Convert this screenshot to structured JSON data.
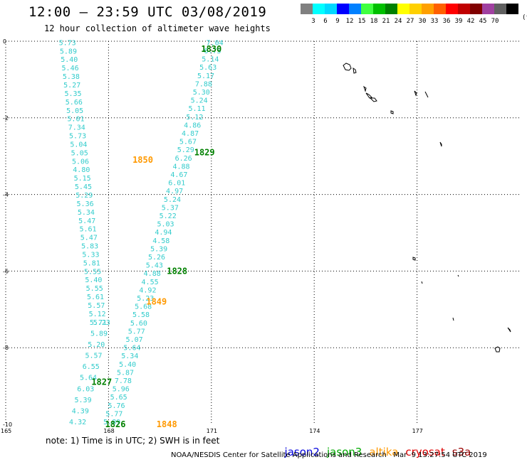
{
  "header": {
    "title": "12:00 — 23:59 UTC 03/08/2019",
    "subtitle": "12 hour collection of altimeter wave heights"
  },
  "legend": {
    "colors": [
      "#808080",
      "#00ffff",
      "#00d8ff",
      "#0000ff",
      "#0080ff",
      "#40ff40",
      "#00c000",
      "#008000",
      "#ffff00",
      "#ffd000",
      "#ffa000",
      "#ff6000",
      "#ff0000",
      "#c00000",
      "#800000",
      "#a040a0",
      "#606060",
      "#000000"
    ],
    "labels": [
      "3",
      "6",
      "9",
      "12",
      "15",
      "18",
      "21",
      "24",
      "27",
      "30",
      "33",
      "36",
      "39",
      "42",
      "45",
      "70"
    ],
    "unit": "(ft)"
  },
  "map": {
    "lon_range": [
      165,
      180
    ],
    "lat_range": [
      0,
      -10
    ],
    "y_ticks": [
      "0",
      "-2",
      "-4",
      "-6",
      "-8",
      "-10"
    ],
    "x_ticks": [
      "165",
      "168",
      "171",
      "174",
      "177"
    ],
    "grid": true,
    "point_color": "#33cccc",
    "passes": [
      {
        "label": "1830",
        "color": "#008000",
        "lon": 170.7,
        "lat": -0.2
      },
      {
        "label": "1829",
        "color": "#008000",
        "lon": 170.5,
        "lat": -2.9
      },
      {
        "label": "1828",
        "color": "#008000",
        "lon": 169.7,
        "lat": -6.0
      },
      {
        "label": "1827",
        "color": "#008000",
        "lon": 167.5,
        "lat": -8.9
      },
      {
        "label": "1826",
        "color": "#008000",
        "lon": 167.9,
        "lat": -10.0
      },
      {
        "label": "1850",
        "color": "#ff9900",
        "lon": 168.7,
        "lat": -3.1
      },
      {
        "label": "1849",
        "color": "#ff9900",
        "lon": 169.1,
        "lat": -6.8
      },
      {
        "label": "1848",
        "color": "#ff9900",
        "lon": 169.4,
        "lat": -10.0
      }
    ],
    "track_a": {
      "lon_start": 166.8,
      "lat_start": -0.1,
      "lon_end": 167.7,
      "lat_end": -7.4,
      "values": [
        "5.73",
        "5.89",
        "5.40",
        "5.46",
        "5.38",
        "5.27",
        "5.35",
        "5.66",
        "5.05",
        "5.01",
        "7.34",
        "5.73",
        "5.04",
        "5.05",
        "5.06",
        "4.80",
        "5.15",
        "5.45",
        "5.29",
        "5.36",
        "5.34",
        "5.47",
        "5.61",
        "5.47",
        "5.83",
        "5.33",
        "5.81",
        "5.55",
        "5.40",
        "5.55",
        "5.61",
        "5.57",
        "5.12",
        "5.71"
      ]
    },
    "track_b": {
      "lon_start": 171.1,
      "lat_start": -0.1,
      "lon_end": 168.1,
      "lat_end": -10.0,
      "values": [
        "7.04",
        "6.75",
        "5.14",
        "5.63",
        "5.17",
        "7.88",
        "5.30",
        "5.24",
        "5.11",
        "5.12",
        "4.86",
        "4.87",
        "5.67",
        "5.29",
        "6.26",
        "4.88",
        "4.67",
        "6.01",
        "4.97",
        "5.24",
        "5.37",
        "5.22",
        "5.03",
        "4.94",
        "4.58",
        "5.39",
        "5.26",
        "5.43",
        "4.88",
        "4.55",
        "4.92",
        "5.23",
        "5.68",
        "5.58",
        "5.60",
        "5.77",
        "5.07",
        "5.64",
        "5.34",
        "5.40",
        "5.87",
        "7.78",
        "5.96",
        "5.65",
        "5.76",
        "5.77",
        "5.89"
      ]
    },
    "track_c": {
      "lon_start": 167.8,
      "lat_start": -7.4,
      "lon_end": 167.1,
      "lat_end": -10.0,
      "values": [
        "5.23",
        "5.89",
        "5.20",
        "5.57",
        "6.55",
        "5.64",
        "6.03",
        "5.39",
        "4.39",
        "4.32"
      ]
    }
  },
  "footer": {
    "note": "note: 1) Time is in UTC; 2) SWH is in feet",
    "satellites": [
      {
        "name": "jason2",
        "color": "#0000dd"
      },
      {
        "name": "jason3",
        "color": "#00aa00"
      },
      {
        "name": "altika",
        "color": "#ff9900"
      },
      {
        "name": "cryosat",
        "color": "#dd0000"
      },
      {
        "name": "s3a",
        "color": "#990000"
      }
    ],
    "credit": "NOAA/NESDIS Center for Satellite Applications and Research   Mar  9 13:27:54 UTC 2019"
  }
}
